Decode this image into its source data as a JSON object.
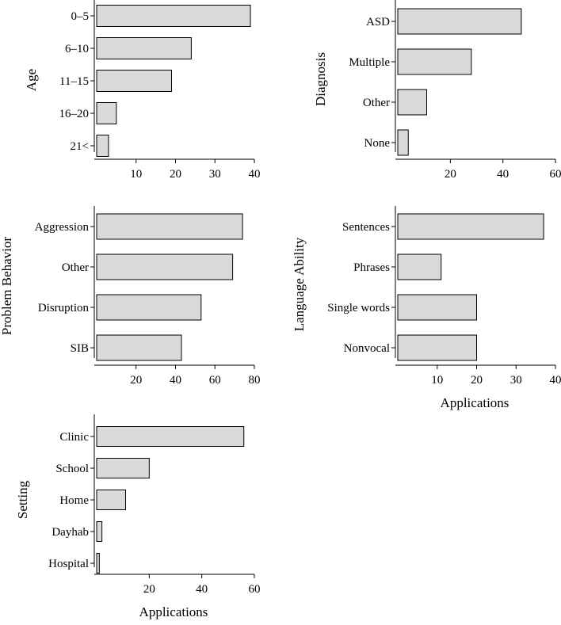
{
  "chart_data": [
    {
      "id": "age",
      "type": "bar",
      "orientation": "horizontal",
      "ylabel": "Age",
      "xlabel": "",
      "categories": [
        "0–5",
        "6–10",
        "11–15",
        "16–20",
        "21<"
      ],
      "values": [
        39,
        24,
        19,
        5,
        3
      ],
      "xlim": [
        0,
        40
      ],
      "xticks": [
        10,
        20,
        30,
        40
      ]
    },
    {
      "id": "diagnosis",
      "type": "bar",
      "orientation": "horizontal",
      "ylabel": "Diagnosis",
      "xlabel": "",
      "categories": [
        "ASD",
        "Multiple",
        "Other",
        "None"
      ],
      "values": [
        47,
        28,
        11,
        4
      ],
      "xlim": [
        0,
        60
      ],
      "xticks": [
        20,
        40,
        60
      ]
    },
    {
      "id": "problem-behavior",
      "type": "bar",
      "orientation": "horizontal",
      "ylabel": "Problem Behavior",
      "xlabel": "",
      "categories": [
        "Aggression",
        "Other",
        "Disruption",
        "SIB"
      ],
      "values": [
        74,
        69,
        53,
        43
      ],
      "xlim": [
        0,
        80
      ],
      "xticks": [
        20,
        40,
        60,
        80
      ]
    },
    {
      "id": "language-ability",
      "type": "bar",
      "orientation": "horizontal",
      "ylabel": "Language Ability",
      "xlabel": "Applications",
      "categories": [
        "Sentences",
        "Phrases",
        "Single words",
        "Nonvocal"
      ],
      "values": [
        37,
        11,
        20,
        20
      ],
      "xlim": [
        0,
        40
      ],
      "xticks": [
        10,
        20,
        30,
        40
      ]
    },
    {
      "id": "setting",
      "type": "bar",
      "orientation": "horizontal",
      "ylabel": "Setting",
      "xlabel": "Applications",
      "categories": [
        "Clinic",
        "School",
        "Home",
        "Dayhab",
        "Hospital"
      ],
      "values": [
        56,
        20,
        11,
        2,
        1
      ],
      "xlim": [
        0,
        60
      ],
      "xticks": [
        20,
        40,
        60
      ]
    }
  ]
}
